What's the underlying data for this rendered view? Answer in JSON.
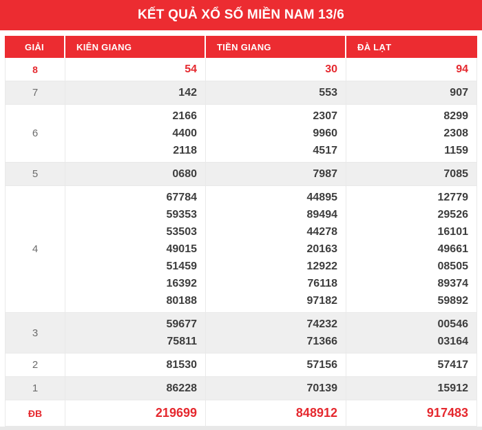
{
  "title": "KẾT QUẢ XỔ SỐ MIỀN NAM 13/6",
  "colors": {
    "accent_red": "#ec2c31",
    "red_number_text": "#e5282e",
    "row_shade": "#efefef",
    "dark_number_text": "#3d3d3d",
    "prize_label_gray": "#6b6b6b"
  },
  "table": {
    "columns": [
      "GIẢI",
      "KIÊN GIANG",
      "TIỀN GIANG",
      "ĐÀ LẠT"
    ],
    "rows": [
      {
        "prize": "8",
        "highlight": true,
        "special": false,
        "shaded": false,
        "kien_giang": [
          "54"
        ],
        "tien_giang": [
          "30"
        ],
        "da_lat": [
          "94"
        ]
      },
      {
        "prize": "7",
        "highlight": false,
        "special": false,
        "shaded": true,
        "kien_giang": [
          "142"
        ],
        "tien_giang": [
          "553"
        ],
        "da_lat": [
          "907"
        ]
      },
      {
        "prize": "6",
        "highlight": false,
        "special": false,
        "shaded": false,
        "kien_giang": [
          "2166",
          "4400",
          "2118"
        ],
        "tien_giang": [
          "2307",
          "9960",
          "4517"
        ],
        "da_lat": [
          "8299",
          "2308",
          "1159"
        ]
      },
      {
        "prize": "5",
        "highlight": false,
        "special": false,
        "shaded": true,
        "kien_giang": [
          "0680"
        ],
        "tien_giang": [
          "7987"
        ],
        "da_lat": [
          "7085"
        ]
      },
      {
        "prize": "4",
        "highlight": false,
        "special": false,
        "shaded": false,
        "kien_giang": [
          "67784",
          "59353",
          "53503",
          "49015",
          "51459",
          "16392",
          "80188"
        ],
        "tien_giang": [
          "44895",
          "89494",
          "44278",
          "20163",
          "12922",
          "76118",
          "97182"
        ],
        "da_lat": [
          "12779",
          "29526",
          "16101",
          "49661",
          "08505",
          "89374",
          "59892"
        ]
      },
      {
        "prize": "3",
        "highlight": false,
        "special": false,
        "shaded": true,
        "kien_giang": [
          "59677",
          "75811"
        ],
        "tien_giang": [
          "74232",
          "71366"
        ],
        "da_lat": [
          "00546",
          "03164"
        ]
      },
      {
        "prize": "2",
        "highlight": false,
        "special": false,
        "shaded": false,
        "kien_giang": [
          "81530"
        ],
        "tien_giang": [
          "57156"
        ],
        "da_lat": [
          "57417"
        ]
      },
      {
        "prize": "1",
        "highlight": false,
        "special": false,
        "shaded": true,
        "kien_giang": [
          "86228"
        ],
        "tien_giang": [
          "70139"
        ],
        "da_lat": [
          "15912"
        ]
      },
      {
        "prize": "ĐB",
        "highlight": true,
        "special": true,
        "shaded": false,
        "kien_giang": [
          "219699"
        ],
        "tien_giang": [
          "848912"
        ],
        "da_lat": [
          "917483"
        ]
      }
    ]
  }
}
